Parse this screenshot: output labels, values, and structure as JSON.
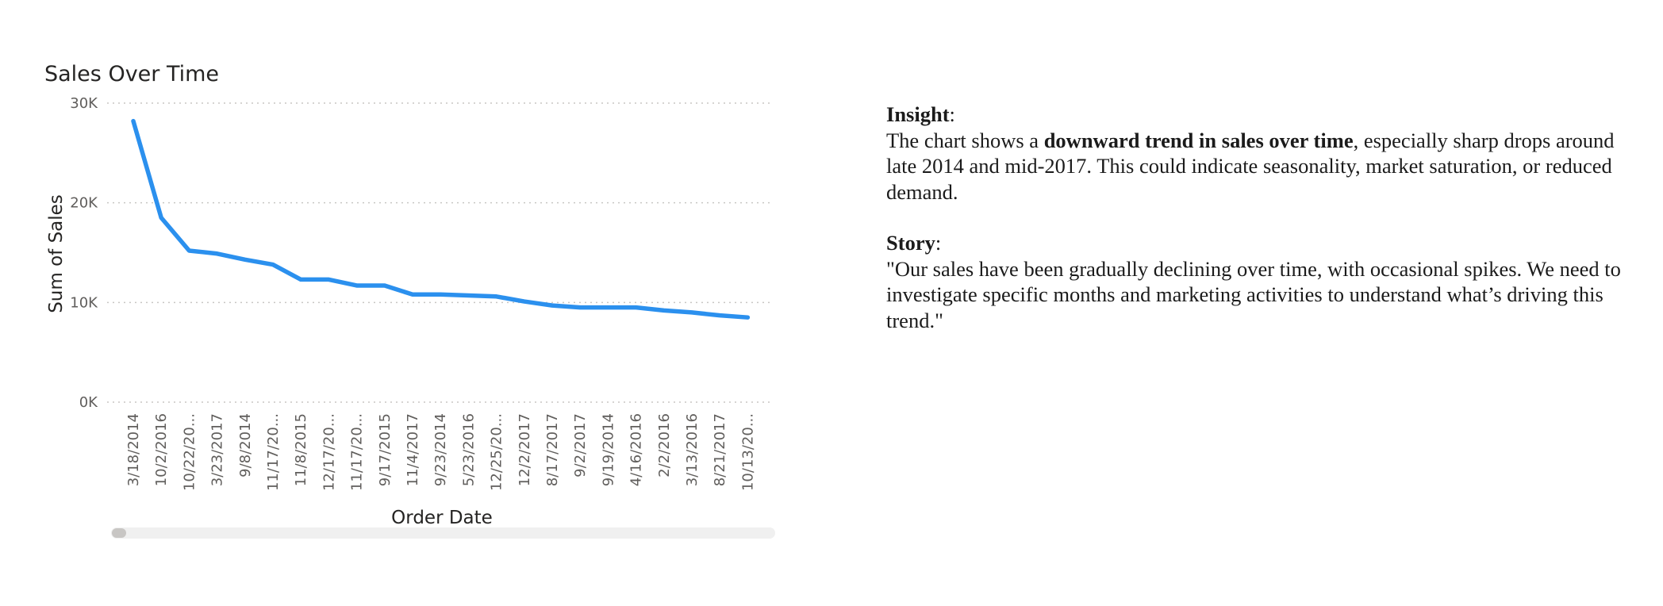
{
  "chart_data": {
    "type": "line",
    "title": "Sales Over Time",
    "xlabel": "Order Date",
    "ylabel": "Sum of Sales",
    "ylim": [
      0,
      30000
    ],
    "y_ticks": [
      "0K",
      "10K",
      "20K",
      "30K"
    ],
    "grid": true,
    "categories": [
      "3/18/2014",
      "10/2/2016",
      "10/22/20...",
      "3/23/2017",
      "9/8/2014",
      "11/17/20...",
      "11/8/2015",
      "12/17/20...",
      "11/17/20...",
      "9/17/2015",
      "11/4/2017",
      "9/23/2014",
      "5/23/2016",
      "12/25/20...",
      "12/2/2017",
      "8/17/2017",
      "9/2/2017",
      "9/19/2014",
      "4/16/2016",
      "2/2/2016",
      "3/13/2016",
      "8/21/2017",
      "10/13/20..."
    ],
    "series": [
      {
        "values": [
          28200,
          18500,
          15200,
          14900,
          14300,
          13800,
          12300,
          12300,
          11700,
          11700,
          10800,
          10800,
          10700,
          10600,
          10100,
          9700,
          9500,
          9500,
          9500,
          9200,
          9000,
          8700,
          8500
        ],
        "color": "#2b90ee"
      }
    ],
    "scrollbar": true
  },
  "text_panel": {
    "insight_heading": "Insight",
    "insight_colon": ":",
    "insight_before": "The chart shows a ",
    "insight_bold": "downward trend in sales over time",
    "insight_after": ", especially sharp drops around late 2014 and mid-2017. This could indicate seasonality, market saturation, or reduced demand.",
    "story_heading": "Story",
    "story_colon": ":",
    "story_text": "\"Our sales have been gradually declining over time, with occasional spikes. We need to investigate specific months and marketing activities to understand what’s driving this trend.\""
  }
}
